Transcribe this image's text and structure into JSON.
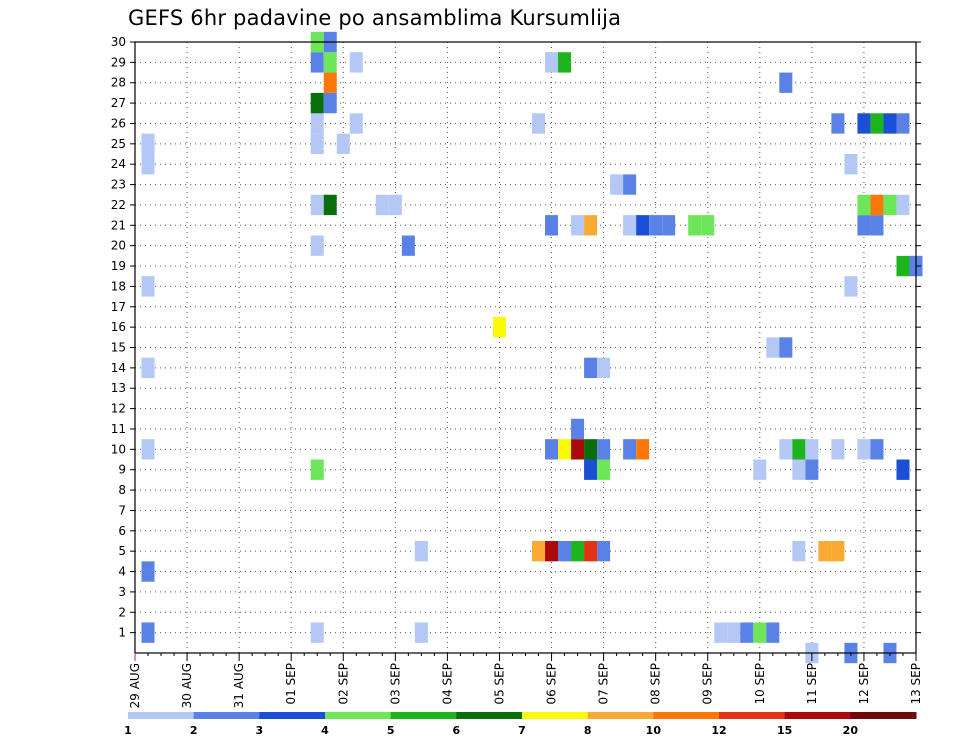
{
  "chart_data": {
    "type": "heatmap",
    "title": "GEFS 6hr padavine po ansamblima Kursumlija",
    "xlabel": "",
    "ylabel": "",
    "y_ticks": [
      1,
      2,
      3,
      4,
      5,
      6,
      7,
      8,
      9,
      10,
      11,
      12,
      13,
      14,
      15,
      16,
      17,
      18,
      19,
      20,
      21,
      22,
      23,
      24,
      25,
      26,
      27,
      28,
      29,
      30
    ],
    "ylim": [
      0,
      30
    ],
    "x_tick_labels": [
      "29 AUG",
      "30 AUG",
      "31 AUG",
      "01 SEP",
      "02 SEP",
      "03 SEP",
      "04 SEP",
      "05 SEP",
      "06 SEP",
      "07 SEP",
      "08 SEP",
      "09 SEP",
      "10 SEP",
      "11 SEP",
      "12 SEP",
      "13 SEP"
    ],
    "x_steps_per_day": 4,
    "xlim_steps": [
      0,
      60
    ],
    "grid": true,
    "legend_placement": "bottom",
    "legend_colors": [
      "#b4c8f5",
      "#5a82e6",
      "#1a4fd6",
      "#6ee65a",
      "#1eb41e",
      "#0a6e0a",
      "#fafa0a",
      "#faaa32",
      "#fa780a",
      "#e63214",
      "#aa0a0a",
      "#6e0a0a"
    ],
    "legend_labels": [
      "1",
      "2",
      "3",
      "4",
      "5",
      "6",
      "7",
      "8",
      "10",
      "12",
      "15",
      "20"
    ],
    "cells": [
      {
        "member": 1,
        "step": 1,
        "cls": 2
      },
      {
        "member": 1,
        "step": 14,
        "cls": 1
      },
      {
        "member": 1,
        "step": 22,
        "cls": 1
      },
      {
        "member": 1,
        "step": 45,
        "cls": 1
      },
      {
        "member": 1,
        "step": 46,
        "cls": 1
      },
      {
        "member": 1,
        "step": 47,
        "cls": 2
      },
      {
        "member": 1,
        "step": 48,
        "cls": 4
      },
      {
        "member": 1,
        "step": 49,
        "cls": 2
      },
      {
        "member": 4,
        "step": 1,
        "cls": 2
      },
      {
        "member": 5,
        "step": 22,
        "cls": 1
      },
      {
        "member": 5,
        "step": 31,
        "cls": 8
      },
      {
        "member": 5,
        "step": 32,
        "cls": 11
      },
      {
        "member": 5,
        "step": 33,
        "cls": 2
      },
      {
        "member": 5,
        "step": 34,
        "cls": 5
      },
      {
        "member": 5,
        "step": 35,
        "cls": 10
      },
      {
        "member": 5,
        "step": 36,
        "cls": 2
      },
      {
        "member": 5,
        "step": 51,
        "cls": 1
      },
      {
        "member": 5,
        "step": 53,
        "cls": 8
      },
      {
        "member": 5,
        "step": 54,
        "cls": 8
      },
      {
        "member": 9,
        "step": 14,
        "cls": 4
      },
      {
        "member": 9,
        "step": 35,
        "cls": 3
      },
      {
        "member": 9,
        "step": 36,
        "cls": 4
      },
      {
        "member": 9,
        "step": 48,
        "cls": 1
      },
      {
        "member": 9,
        "step": 51,
        "cls": 1
      },
      {
        "member": 9,
        "step": 52,
        "cls": 2
      },
      {
        "member": 9,
        "step": 59,
        "cls": 3
      },
      {
        "member": 10,
        "step": 1,
        "cls": 1
      },
      {
        "member": 10,
        "step": 32,
        "cls": 2
      },
      {
        "member": 10,
        "step": 33,
        "cls": 7
      },
      {
        "member": 10,
        "step": 34,
        "cls": 11
      },
      {
        "member": 10,
        "step": 35,
        "cls": 6
      },
      {
        "member": 10,
        "step": 36,
        "cls": 2
      },
      {
        "member": 10,
        "step": 38,
        "cls": 2
      },
      {
        "member": 10,
        "step": 39,
        "cls": 9
      },
      {
        "member": 10,
        "step": 50,
        "cls": 1
      },
      {
        "member": 10,
        "step": 51,
        "cls": 5
      },
      {
        "member": 10,
        "step": 52,
        "cls": 1
      },
      {
        "member": 10,
        "step": 54,
        "cls": 1
      },
      {
        "member": 10,
        "step": 56,
        "cls": 1
      },
      {
        "member": 10,
        "step": 57,
        "cls": 2
      },
      {
        "member": 11,
        "step": 34,
        "cls": 2
      },
      {
        "member": 14,
        "step": 1,
        "cls": 1
      },
      {
        "member": 14,
        "step": 35,
        "cls": 2
      },
      {
        "member": 14,
        "step": 36,
        "cls": 1
      },
      {
        "member": 15,
        "step": 49,
        "cls": 1
      },
      {
        "member": 15,
        "step": 50,
        "cls": 2
      },
      {
        "member": 16,
        "step": 28,
        "cls": 7
      },
      {
        "member": 18,
        "step": 1,
        "cls": 1
      },
      {
        "member": 18,
        "step": 55,
        "cls": 1
      },
      {
        "member": 19,
        "step": 59,
        "cls": 5
      },
      {
        "member": 19,
        "step": 60,
        "cls": 2
      },
      {
        "member": 20,
        "step": 14,
        "cls": 1
      },
      {
        "member": 20,
        "step": 21,
        "cls": 2
      },
      {
        "member": 21,
        "step": 32,
        "cls": 2
      },
      {
        "member": 21,
        "step": 34,
        "cls": 1
      },
      {
        "member": 21,
        "step": 35,
        "cls": 8
      },
      {
        "member": 21,
        "step": 38,
        "cls": 1
      },
      {
        "member": 21,
        "step": 39,
        "cls": 3
      },
      {
        "member": 21,
        "step": 40,
        "cls": 2
      },
      {
        "member": 21,
        "step": 41,
        "cls": 2
      },
      {
        "member": 21,
        "step": 43,
        "cls": 4
      },
      {
        "member": 21,
        "step": 44,
        "cls": 4
      },
      {
        "member": 21,
        "step": 56,
        "cls": 2
      },
      {
        "member": 21,
        "step": 57,
        "cls": 2
      },
      {
        "member": 22,
        "step": 14,
        "cls": 1
      },
      {
        "member": 22,
        "step": 15,
        "cls": 6
      },
      {
        "member": 22,
        "step": 19,
        "cls": 1
      },
      {
        "member": 22,
        "step": 20,
        "cls": 1
      },
      {
        "member": 22,
        "step": 56,
        "cls": 4
      },
      {
        "member": 22,
        "step": 57,
        "cls": 9
      },
      {
        "member": 22,
        "step": 58,
        "cls": 4
      },
      {
        "member": 22,
        "step": 59,
        "cls": 1
      },
      {
        "member": 23,
        "step": 37,
        "cls": 1
      },
      {
        "member": 23,
        "step": 38,
        "cls": 2
      },
      {
        "member": 24,
        "step": 1,
        "cls": 1
      },
      {
        "member": 24,
        "step": 55,
        "cls": 1
      },
      {
        "member": 25,
        "step": 1,
        "cls": 1
      },
      {
        "member": 25,
        "step": 14,
        "cls": 1
      },
      {
        "member": 25,
        "step": 16,
        "cls": 1
      },
      {
        "member": 26,
        "step": 14,
        "cls": 1
      },
      {
        "member": 26,
        "step": 17,
        "cls": 1
      },
      {
        "member": 26,
        "step": 31,
        "cls": 1
      },
      {
        "member": 26,
        "step": 54,
        "cls": 2
      },
      {
        "member": 26,
        "step": 56,
        "cls": 3
      },
      {
        "member": 26,
        "step": 57,
        "cls": 5
      },
      {
        "member": 26,
        "step": 58,
        "cls": 3
      },
      {
        "member": 26,
        "step": 59,
        "cls": 2
      },
      {
        "member": 27,
        "step": 14,
        "cls": 6
      },
      {
        "member": 27,
        "step": 15,
        "cls": 2
      },
      {
        "member": 28,
        "step": 15,
        "cls": 9
      },
      {
        "member": 28,
        "step": 50,
        "cls": 2
      },
      {
        "member": 29,
        "step": 14,
        "cls": 2
      },
      {
        "member": 29,
        "step": 15,
        "cls": 4
      },
      {
        "member": 29,
        "step": 17,
        "cls": 1
      },
      {
        "member": 29,
        "step": 32,
        "cls": 1
      },
      {
        "member": 29,
        "step": 33,
        "cls": 5
      },
      {
        "member": 30,
        "step": 14,
        "cls": 4
      },
      {
        "member": 30,
        "step": 15,
        "cls": 2
      },
      {
        "member": 0,
        "step": 52,
        "cls": 1
      },
      {
        "member": 0,
        "step": 55,
        "cls": 2
      },
      {
        "member": 0,
        "step": 58,
        "cls": 2
      }
    ]
  }
}
